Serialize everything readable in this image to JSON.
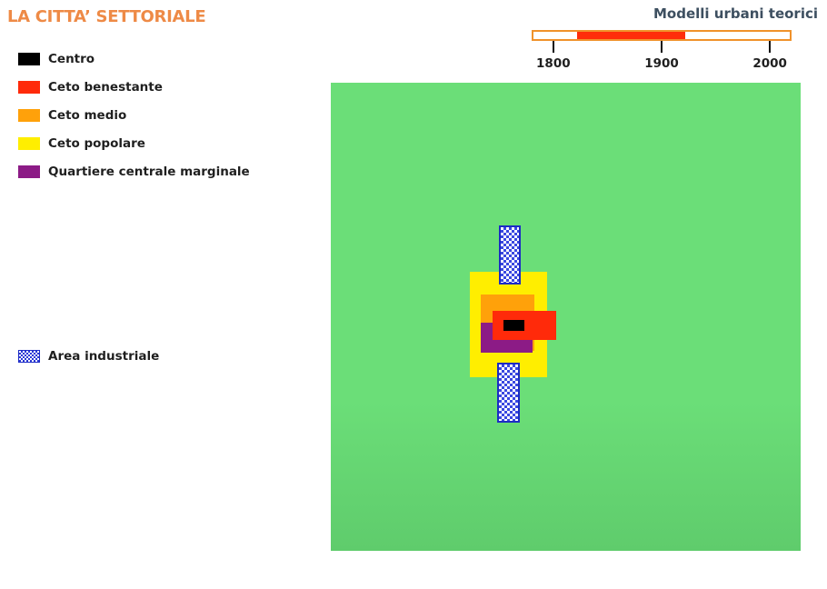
{
  "title": "LA CITTA’ SETTORIALE",
  "colors": {
    "title": "#ee8a46",
    "centro": "#000000",
    "ceto_benestante": "#ff2a0a",
    "ceto_medio": "#ffa10a",
    "ceto_popolare": "#ffee00",
    "quartiere_marginale": "#8c1b86",
    "area_industriale": "#2c3ad6",
    "map_background": "#6bde78",
    "timeline_highlight": "#ff2d0a",
    "timeline_border": "#f0922b"
  },
  "legend": {
    "items": [
      {
        "label": "Centro",
        "swatch": "centro"
      },
      {
        "label": "Ceto benestante",
        "swatch": "ceto_benestante"
      },
      {
        "label": "Ceto medio",
        "swatch": "ceto_medio"
      },
      {
        "label": "Ceto popolare",
        "swatch": "ceto_popolare"
      },
      {
        "label": "Quartiere centrale marginale",
        "swatch": "quartiere_marginale"
      }
    ],
    "industrial": {
      "label": "Area industriale",
      "swatch": "area_industriale"
    }
  },
  "timeline": {
    "title": "Modelli urbani teorici",
    "range": [
      1780,
      2020
    ],
    "highlight": [
      1820,
      1920
    ],
    "ticks": [
      "1800",
      "1900",
      "2000"
    ]
  }
}
